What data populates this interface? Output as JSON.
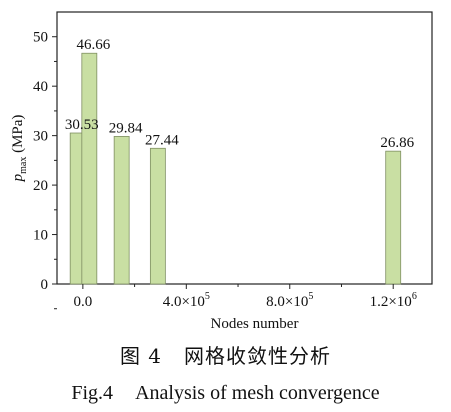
{
  "chart_data": {
    "type": "bar",
    "xlabel": "Nodes number",
    "ylabel": {
      "symbol": "p",
      "subscript": "max",
      "unit": " (MPa)"
    },
    "ylim": [
      0,
      55
    ],
    "y_ticks": [
      "0",
      "10",
      "20",
      "30",
      "40",
      "50"
    ],
    "y_tick_values": [
      0,
      10,
      20,
      30,
      40,
      50
    ],
    "xlim": [
      -100000,
      1350000
    ],
    "x_ticks": [
      {
        "value": 0,
        "label": "0.0"
      },
      {
        "value": 400000,
        "label": "4.0×10",
        "exp": "5"
      },
      {
        "value": 800000,
        "label": "8.0×10",
        "exp": "5"
      },
      {
        "value": 1200000,
        "label": "1.2×10",
        "exp": "6"
      }
    ],
    "bars": [
      {
        "x": -20000,
        "value": 30.53,
        "label": "30.53"
      },
      {
        "x": 25000,
        "value": 46.66,
        "label": "46.66"
      },
      {
        "x": 150000,
        "value": 29.84,
        "label": "29.84"
      },
      {
        "x": 290000,
        "value": 27.44,
        "label": "27.44"
      },
      {
        "x": 1200000,
        "value": 26.86,
        "label": "26.86"
      }
    ],
    "grid": false,
    "colors": {
      "bar_fill": "#c9dfa3",
      "bar_edge": "#7f8f62"
    }
  },
  "captions": {
    "cn_fig": "图 4",
    "cn_title": "网格收敛性分析",
    "en_fig": "Fig.4",
    "en_title": "Analysis of mesh convergence"
  }
}
